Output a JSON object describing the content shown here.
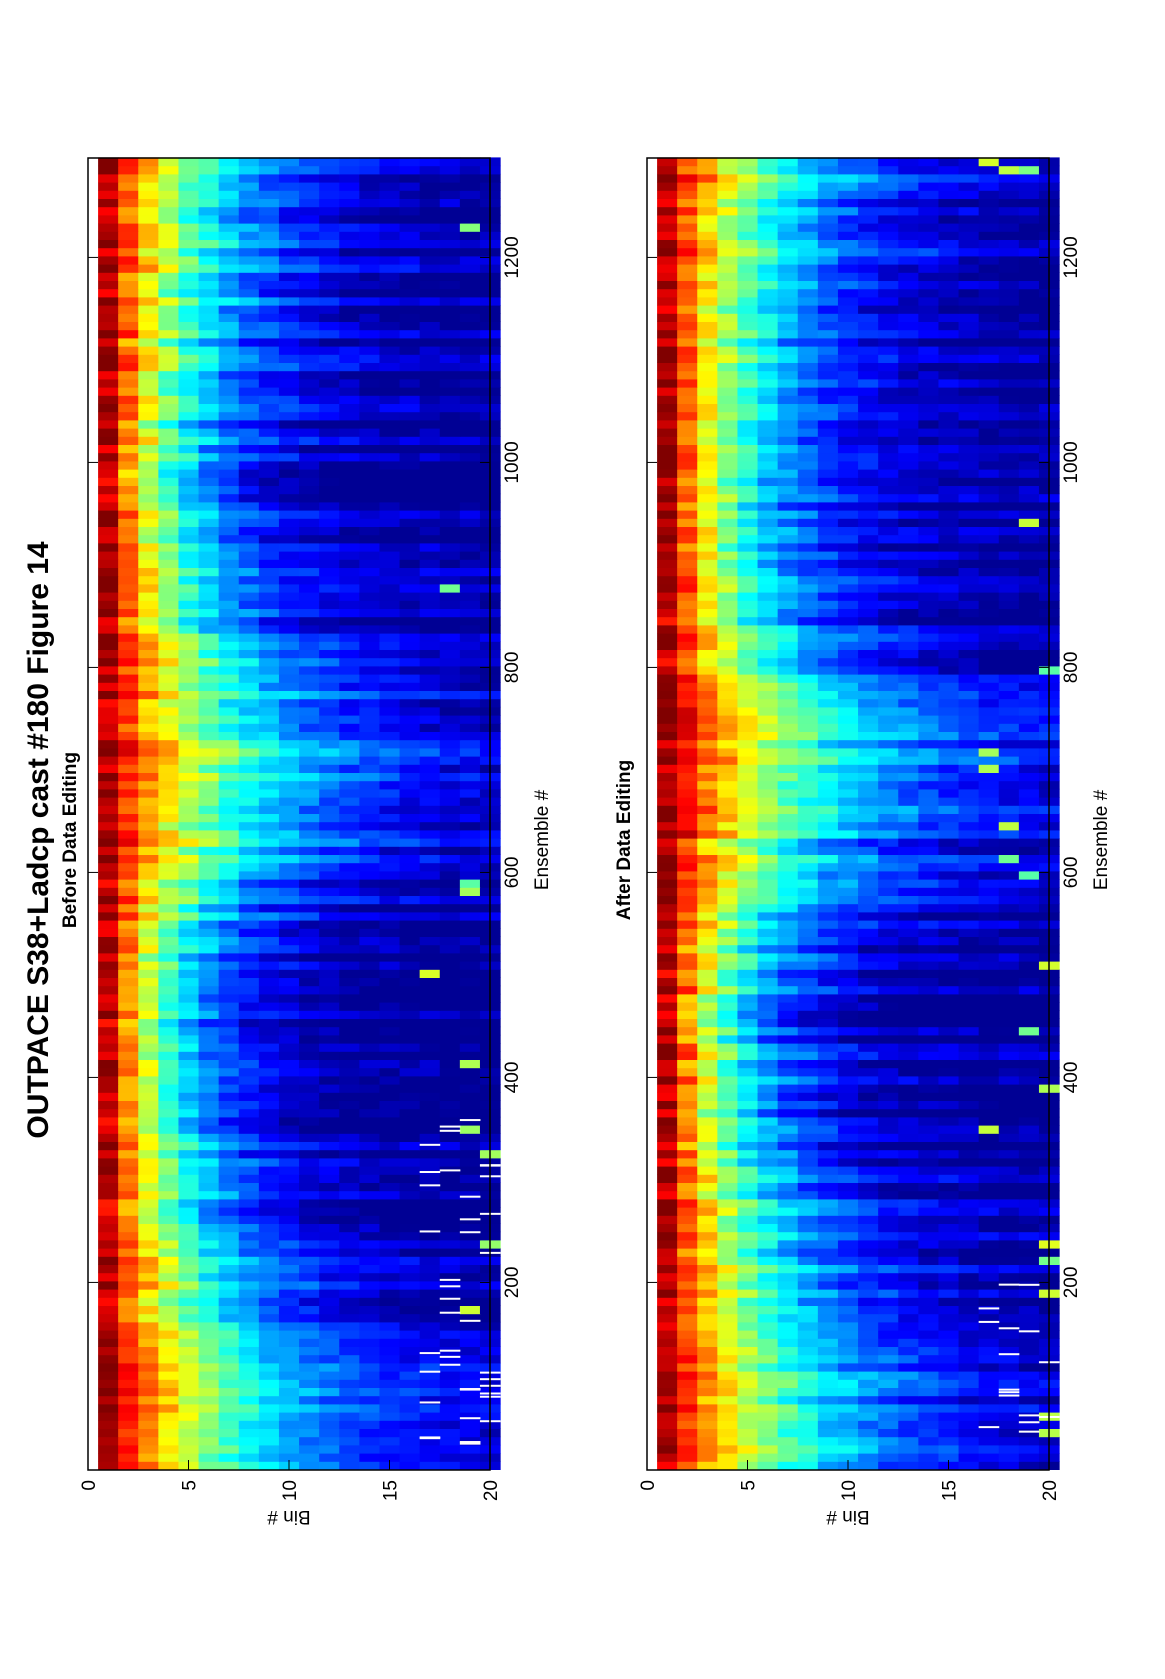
{
  "figure": {
    "title": "OUTPACE S38+Ladcp cast #180  Figure 14"
  },
  "chart_data": [
    {
      "type": "heatmap",
      "title": "Before Data Editing",
      "xlabel": "Bin #",
      "ylabel": "Ensemble #",
      "x_ticks": [
        "0",
        "5",
        "10",
        "15",
        "20"
      ],
      "y_ticks": [
        "200",
        "400",
        "600",
        "800",
        "1000",
        "1200"
      ],
      "bin_range": [
        0,
        20
      ],
      "ensemble_range": [
        17,
        1297
      ],
      "colormap": "jet",
      "gaps": "white marks in bins 17-20 near ensembles 40-360",
      "intensity_profile": {
        "ensembles": [
          17,
          100,
          180,
          250,
          350,
          450,
          550,
          620,
          700,
          780,
          850,
          950,
          1050,
          1150,
          1250,
          1297
        ],
        "decay_bins": [
          7.5,
          7.0,
          6.0,
          4.8,
          4.0,
          3.6,
          4.5,
          7.0,
          8.5,
          7.0,
          4.5,
          4.0,
          4.2,
          5.0,
          5.8,
          6.2
        ]
      }
    },
    {
      "type": "heatmap",
      "title": "After Data Editing",
      "xlabel": "Bin #",
      "ylabel": "Ensemble #",
      "x_ticks": [
        "0",
        "5",
        "10",
        "15",
        "20"
      ],
      "y_ticks": [
        "200",
        "400",
        "600",
        "800",
        "1000",
        "1200"
      ],
      "bin_range": [
        0,
        20
      ],
      "ensemble_range": [
        17,
        1297
      ],
      "colormap": "jet",
      "gaps": "white marks in bins 17-20 near ensembles 40-200",
      "intensity_profile": {
        "ensembles": [
          17,
          100,
          180,
          250,
          350,
          450,
          550,
          620,
          700,
          780,
          850,
          950,
          1050,
          1150,
          1250,
          1297
        ],
        "decay_bins": [
          8.0,
          7.5,
          6.5,
          5.0,
          4.2,
          3.8,
          4.8,
          7.2,
          9.0,
          7.2,
          4.8,
          4.2,
          4.5,
          5.5,
          6.4,
          6.8
        ]
      }
    }
  ]
}
